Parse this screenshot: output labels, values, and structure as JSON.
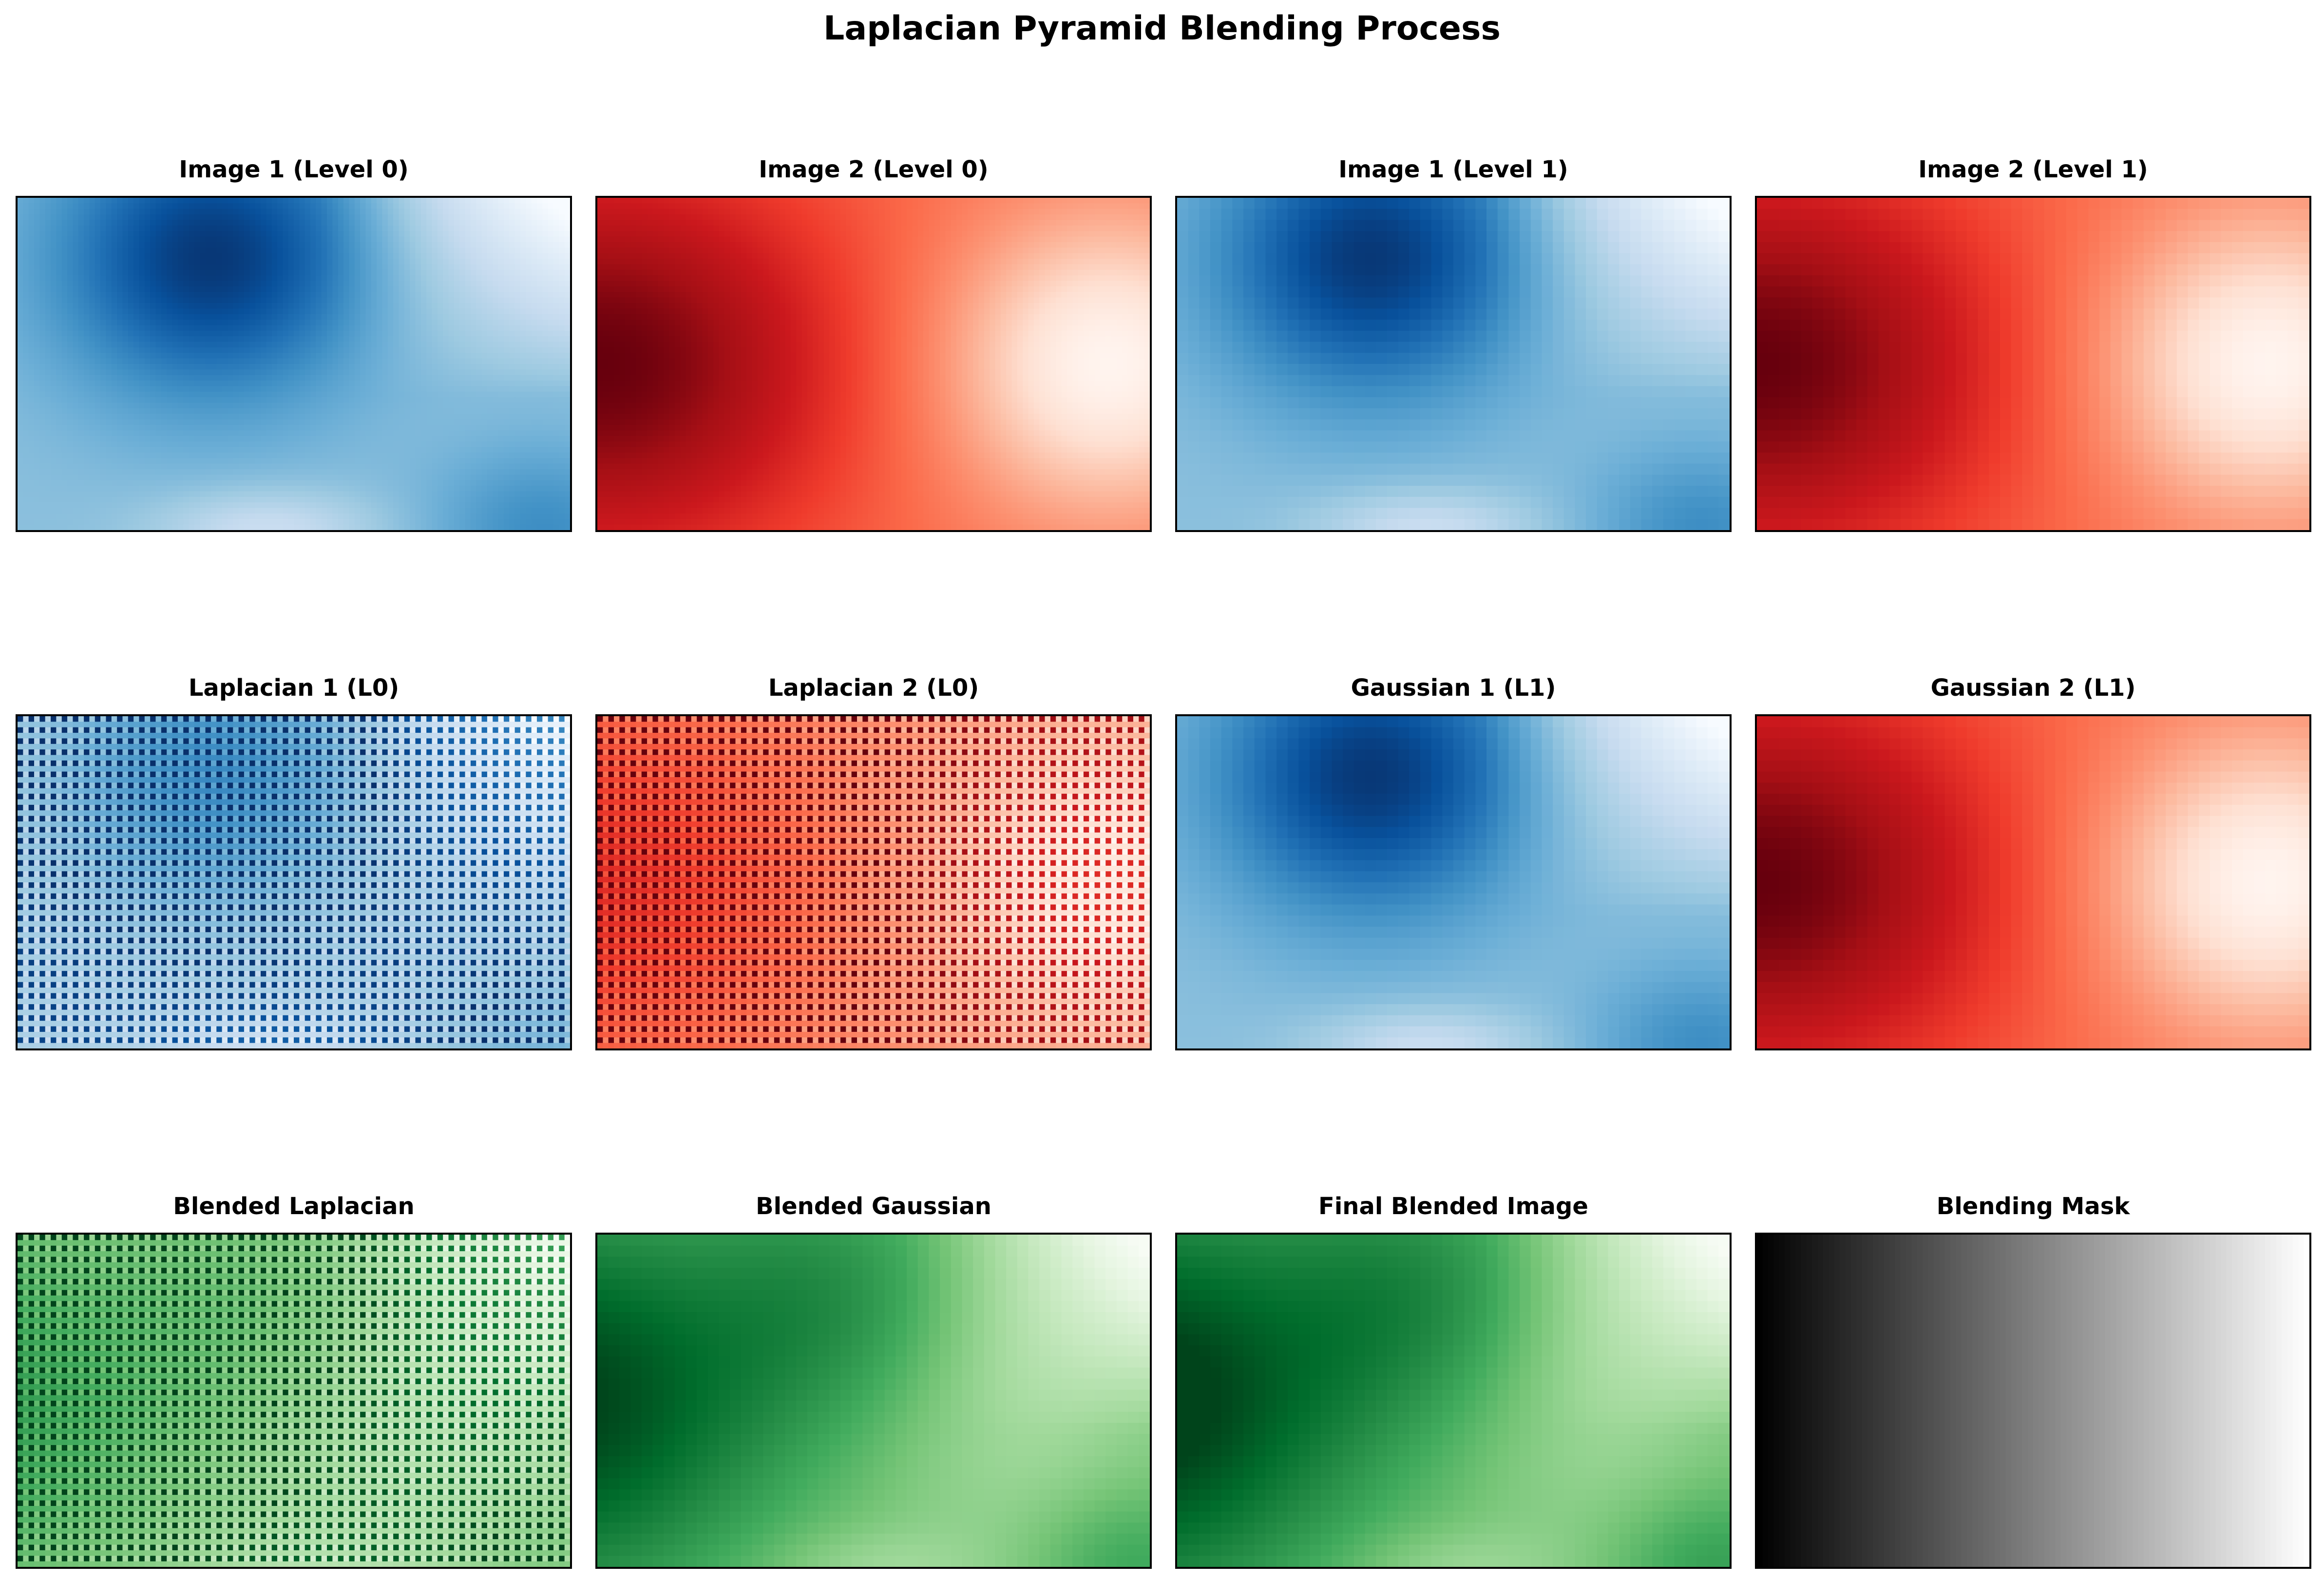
{
  "figure": {
    "suptitle": "Laplacian Pyramid Blending Process"
  },
  "chart_data": [
    {
      "type": "heatmap",
      "title": "Image 1 (Level 0)",
      "colormap": "Blues",
      "pattern": "smooth",
      "source": "img1",
      "gridRows": 60,
      "gridCols": 100
    },
    {
      "type": "heatmap",
      "title": "Image 2 (Level 0)",
      "colormap": "Reds",
      "pattern": "smooth",
      "source": "img2",
      "gridRows": 60,
      "gridCols": 100
    },
    {
      "type": "heatmap",
      "title": "Image 1 (Level 1)",
      "colormap": "Blues",
      "pattern": "smooth",
      "source": "img1",
      "gridRows": 30,
      "gridCols": 50
    },
    {
      "type": "heatmap",
      "title": "Image 2 (Level 1)",
      "colormap": "Reds",
      "pattern": "smooth",
      "source": "img2",
      "gridRows": 30,
      "gridCols": 50
    },
    {
      "type": "heatmap",
      "title": "Laplacian 1 (L0)",
      "colormap": "Blues",
      "pattern": "checker",
      "source": "img1",
      "gridRows": 60,
      "gridCols": 100
    },
    {
      "type": "heatmap",
      "title": "Laplacian 2 (L0)",
      "colormap": "Reds",
      "pattern": "checker",
      "source": "img2",
      "gridRows": 60,
      "gridCols": 100
    },
    {
      "type": "heatmap",
      "title": "Gaussian 1 (L1)",
      "colormap": "Blues",
      "pattern": "smooth",
      "source": "img1",
      "gridRows": 30,
      "gridCols": 50
    },
    {
      "type": "heatmap",
      "title": "Gaussian 2 (L1)",
      "colormap": "Reds",
      "pattern": "smooth",
      "source": "img2",
      "gridRows": 30,
      "gridCols": 50
    },
    {
      "type": "heatmap",
      "title": "Blended Laplacian",
      "colormap": "Greens",
      "pattern": "checker",
      "source": "blend",
      "gridRows": 60,
      "gridCols": 100
    },
    {
      "type": "heatmap",
      "title": "Blended Gaussian",
      "colormap": "Greens",
      "pattern": "smooth",
      "source": "blend",
      "gridRows": 30,
      "gridCols": 50
    },
    {
      "type": "heatmap",
      "title": "Final Blended Image",
      "colormap": "Greens",
      "pattern": "smooth",
      "source": "final",
      "gridRows": 30,
      "gridCols": 50
    },
    {
      "type": "heatmap",
      "title": "Blending Mask",
      "colormap": "gray",
      "pattern": "ramp",
      "source": "mask",
      "gridRows": 1,
      "gridCols": 100
    }
  ],
  "colormaps": {
    "Blues": [
      "#f7fbff",
      "#deebf7",
      "#c6dbef",
      "#9ecae1",
      "#6baed6",
      "#4292c6",
      "#2171b5",
      "#08519c",
      "#08306b"
    ],
    "Reds": [
      "#fff5f0",
      "#fee0d2",
      "#fcbba1",
      "#fc9272",
      "#fb6a4a",
      "#ef3b2c",
      "#cb181d",
      "#a50f15",
      "#67000d"
    ],
    "Greens": [
      "#f7fcf5",
      "#e5f5e0",
      "#c7e9c0",
      "#a1d99b",
      "#74c476",
      "#41ab5d",
      "#238b45",
      "#006d2c",
      "#00441b"
    ],
    "gray": [
      "#000000",
      "#ffffff"
    ]
  }
}
